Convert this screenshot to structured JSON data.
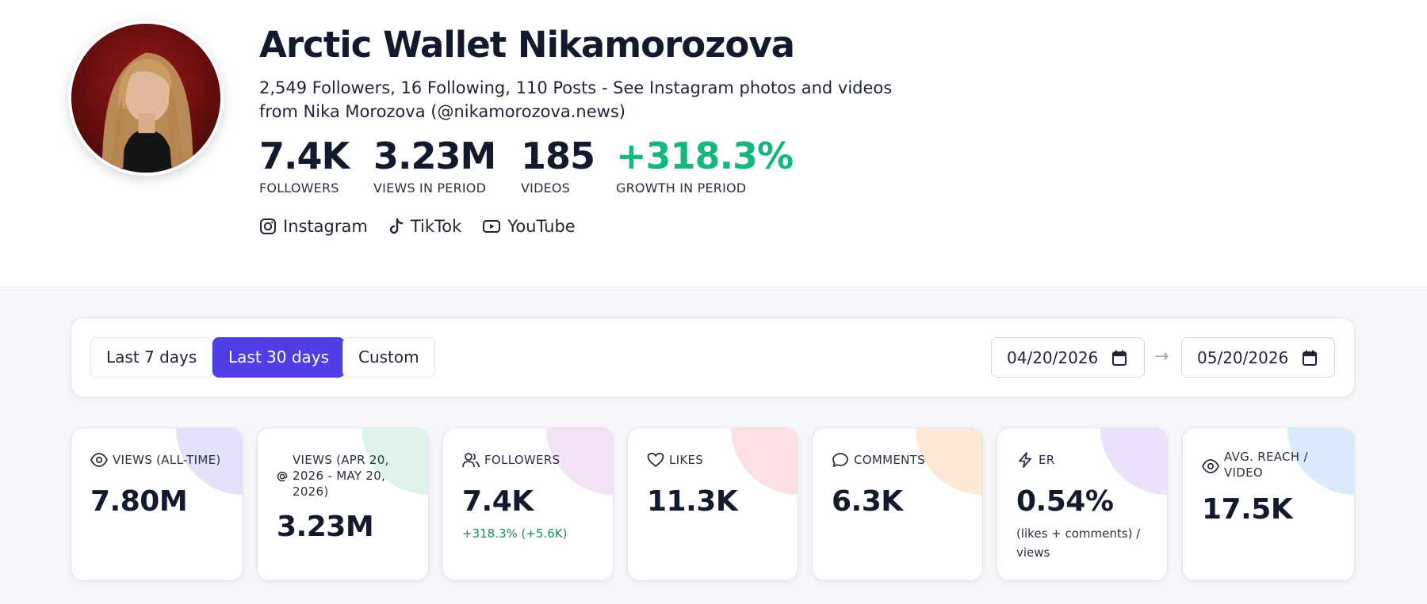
{
  "profile": {
    "name": "Arctic Wallet Nikamorozova",
    "bio": "2,549 Followers, 16 Following, 110 Posts - See Instagram photos and videos from Nika Morozova (@nikamorozova.news)",
    "stats": [
      {
        "value": "7.4K",
        "label": "FOLLOWERS"
      },
      {
        "value": "3.23M",
        "label": "VIEWS IN PERIOD"
      },
      {
        "value": "185",
        "label": "VIDEOS"
      },
      {
        "value": "+318.3%",
        "label": "GROWTH IN PERIOD"
      }
    ],
    "platforms": [
      {
        "label": "Instagram",
        "icon": "instagram-icon"
      },
      {
        "label": "TikTok",
        "icon": "tiktok-icon"
      },
      {
        "label": "YouTube",
        "icon": "youtube-icon"
      }
    ]
  },
  "filters": {
    "ranges": [
      {
        "label": "Last 7 days",
        "active": false
      },
      {
        "label": "Last 30 days",
        "active": true
      },
      {
        "label": "Custom",
        "active": false
      }
    ],
    "start_date": "04/20/2026",
    "end_date": "05/20/2026",
    "separator": "→"
  },
  "metrics": [
    {
      "label": "VIEWS (ALL-TIME)",
      "value": "7.80M",
      "sub": "",
      "icon": "eye-icon",
      "accent": "#e4e1fb"
    },
    {
      "label": "VIEWS (APR 20, 2026 - MAY 20, 2026)",
      "value": "3.23M",
      "sub": "",
      "icon": "at-icon",
      "accent": "#ddf2e8"
    },
    {
      "label": "FOLLOWERS",
      "value": "7.4K",
      "sub": "+318.3% (+5.6K)",
      "icon": "users-icon",
      "accent": "#f3e1f5"
    },
    {
      "label": "LIKES",
      "value": "11.3K",
      "sub": "",
      "icon": "heart-icon",
      "accent": "#fde0e4"
    },
    {
      "label": "COMMENTS",
      "value": "6.3K",
      "sub": "",
      "icon": "comment-icon",
      "accent": "#fde8d6"
    },
    {
      "label": "ER",
      "value": "0.54%",
      "sub": "(likes + comments) / views",
      "icon": "bolt-icon",
      "accent": "#ece0fb"
    },
    {
      "label": "AVG. REACH / VIDEO",
      "value": "17.5K",
      "sub": "",
      "icon": "eye-icon",
      "accent": "#dcebfb"
    }
  ],
  "colors": {
    "accent": "#4f3ee6",
    "growth": "#16b77e",
    "text": "#141a2e"
  }
}
